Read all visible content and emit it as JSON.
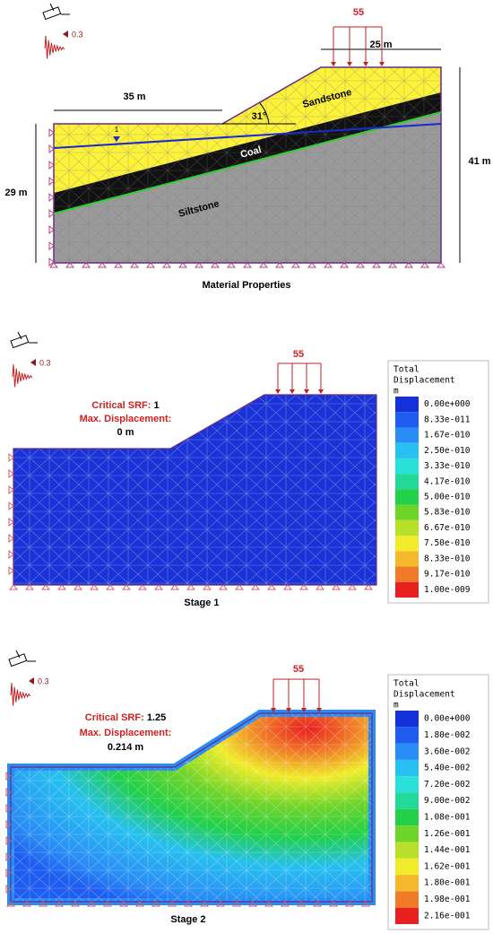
{
  "panel1": {
    "title": "Material Properties",
    "load": "55",
    "seismic": "0.3",
    "width_left": "35 m",
    "width_top": "25 m",
    "height_left": "29 m",
    "height_right": "41 m",
    "slope_angle": "31°",
    "water_table": "1",
    "layers": [
      "Sandstone",
      "Coal",
      "Siltstone"
    ]
  },
  "panel2": {
    "title": "Stage 1",
    "load": "55",
    "seismic": "0.3",
    "srf_label": "Critical SRF:",
    "srf_value": "1",
    "displacement_label": "Max. Displacement:",
    "displacement_value": "0 m",
    "legend": {
      "title": "Total",
      "subtitle": "Displacement",
      "unit": "m",
      "labels": [
        "0.00e+000",
        "8.33e-011",
        "1.67e-010",
        "2.50e-010",
        "3.33e-010",
        "4.17e-010",
        "5.00e-010",
        "5.83e-010",
        "6.67e-010",
        "7.50e-010",
        "8.33e-010",
        "9.17e-010",
        "1.00e-009"
      ]
    }
  },
  "panel3": {
    "title": "Stage 2",
    "load": "55",
    "seismic": "0.3",
    "srf_label": "Critical SRF:",
    "srf_value": "1.25",
    "displacement_label": "Max. Displacement:",
    "displacement_value": "0.214 m",
    "legend": {
      "title": "Total",
      "subtitle": "Displacement",
      "unit": "m",
      "labels": [
        "0.00e+000",
        "1.80e-002",
        "3.60e-002",
        "5.40e-002",
        "7.20e-002",
        "9.00e-002",
        "1.08e-001",
        "1.26e-001",
        "1.44e-001",
        "1.62e-001",
        "1.80e-001",
        "1.98e-001",
        "2.16e-001"
      ]
    }
  },
  "legend_colors": [
    "#1430d8",
    "#1f5cf0",
    "#2a8cf5",
    "#27c0f0",
    "#2ae0d8",
    "#22d99a",
    "#22d04a",
    "#6fd42a",
    "#b8e02a",
    "#f0ec2a",
    "#f5b82a",
    "#f07a28",
    "#e82020"
  ]
}
